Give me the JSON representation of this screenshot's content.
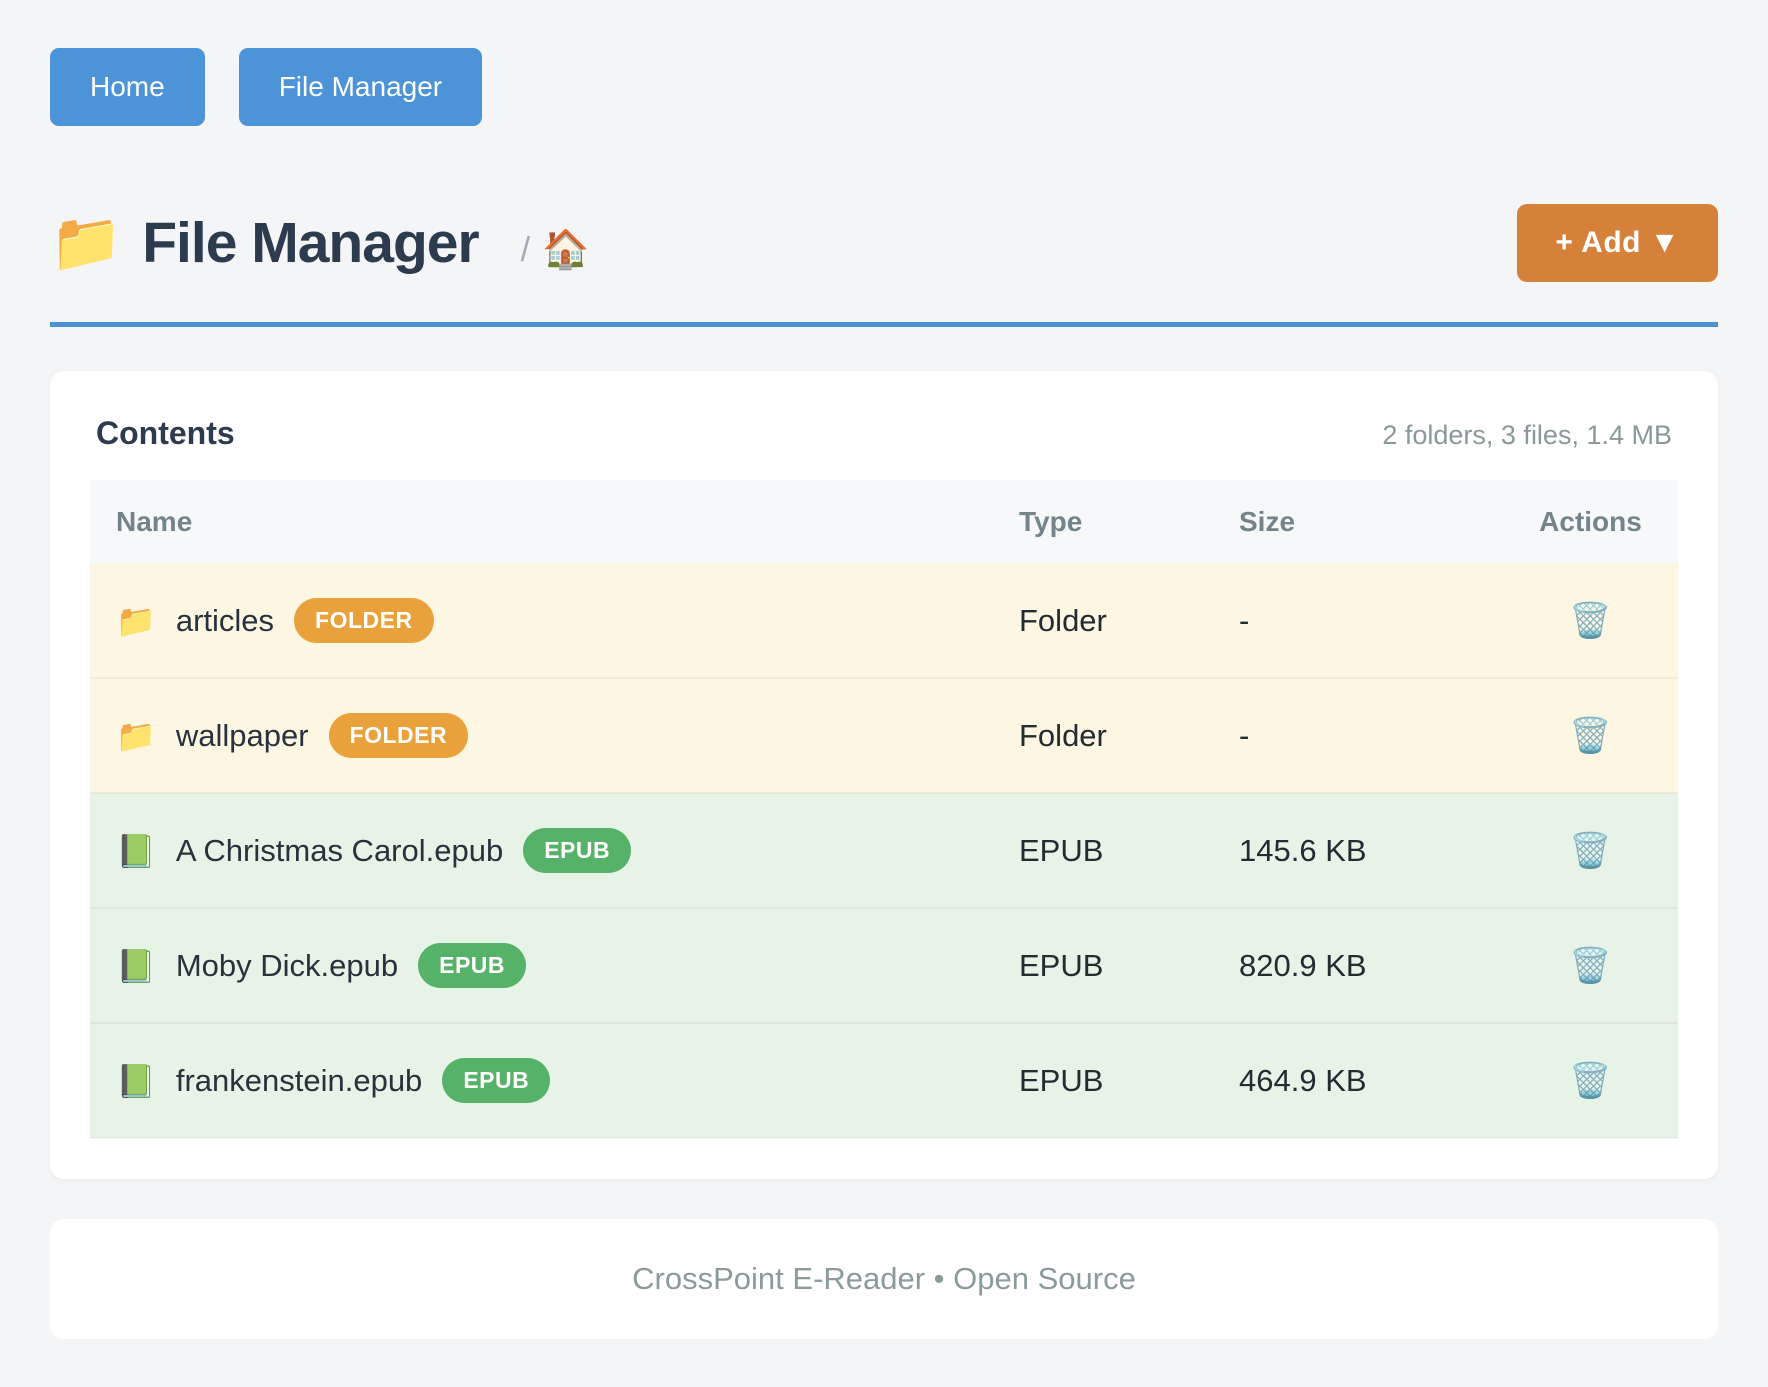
{
  "nav": {
    "home_label": "Home",
    "file_manager_label": "File Manager"
  },
  "header": {
    "folder_icon": "📁",
    "title": "File Manager",
    "breadcrumb_separator": "/",
    "breadcrumb_home_icon": "🏠",
    "add_button_label": "+ Add ▼"
  },
  "contents": {
    "title": "Contents",
    "summary": "2 folders, 3 files, 1.4 MB",
    "table": {
      "columns": [
        "Name",
        "Type",
        "Size",
        "Actions"
      ],
      "delete_icon": "🗑️",
      "rows": [
        {
          "icon": "📁",
          "name": "articles",
          "badge": "FOLDER",
          "type": "Folder",
          "size": "-",
          "kind": "folder"
        },
        {
          "icon": "📁",
          "name": "wallpaper",
          "badge": "FOLDER",
          "type": "Folder",
          "size": "-",
          "kind": "folder"
        },
        {
          "icon": "📗",
          "name": "A Christmas Carol.epub",
          "badge": "EPUB",
          "type": "EPUB",
          "size": "145.6 KB",
          "kind": "epub"
        },
        {
          "icon": "📗",
          "name": "Moby Dick.epub",
          "badge": "EPUB",
          "type": "EPUB",
          "size": "820.9 KB",
          "kind": "epub"
        },
        {
          "icon": "📗",
          "name": "frankenstein.epub",
          "badge": "EPUB",
          "type": "EPUB",
          "size": "464.9 KB",
          "kind": "epub"
        }
      ]
    }
  },
  "theme": {
    "nav_button_color": "#4d93d8",
    "rule_color": "#4a90d2",
    "add_button_color": "#d6813a",
    "folder_badge_color": "#e9a23b",
    "epub_badge_color": "#57b269",
    "folder_row_color": "#fdf6e2",
    "epub_row_color": "#e8f3e8"
  },
  "footer": {
    "text": "CrossPoint E-Reader • Open Source"
  }
}
